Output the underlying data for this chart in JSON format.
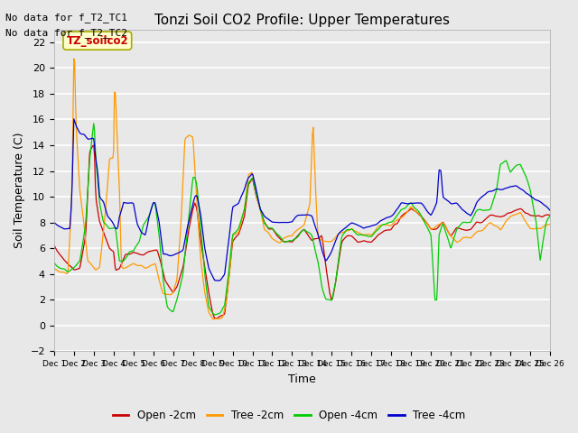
{
  "title": "Tonzi Soil CO2 Profile: Upper Temperatures",
  "xlabel": "Time",
  "ylabel": "Soil Temperature (C)",
  "ylim": [
    -2,
    23
  ],
  "yticks": [
    -2,
    0,
    2,
    4,
    6,
    8,
    10,
    12,
    14,
    16,
    18,
    20,
    22
  ],
  "note_line1": "No data for f_T2_TC1",
  "note_line2": "No data for f_T2_TC2",
  "legend_label": "TZ_soilco2",
  "series_labels": [
    "Open -2cm",
    "Tree -2cm",
    "Open -4cm",
    "Tree -4cm"
  ],
  "series_colors": [
    "#cc0000",
    "#ff9900",
    "#00cc00",
    "#0000cc"
  ],
  "background_color": "#e8e8e8",
  "grid_color": "#ffffff"
}
